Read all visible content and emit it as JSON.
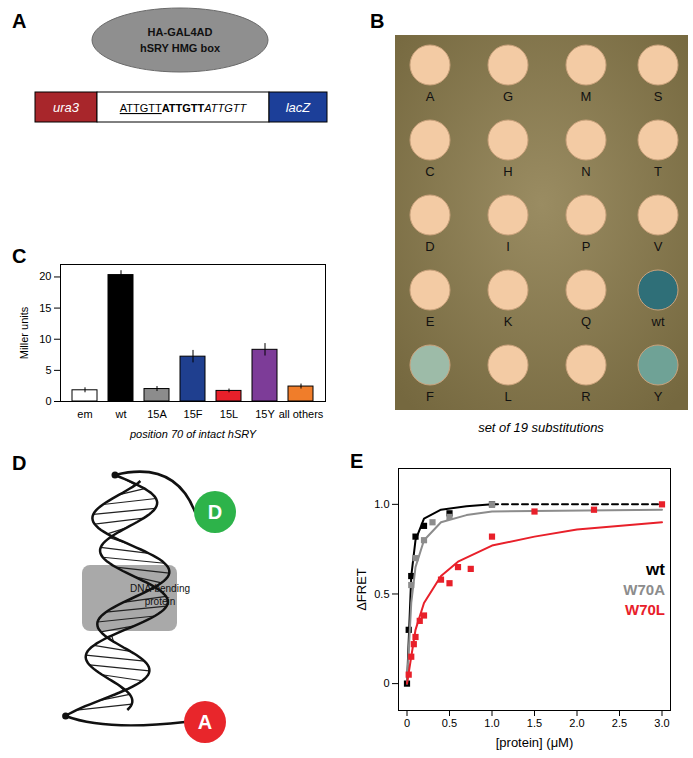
{
  "panel_labels": [
    "A",
    "B",
    "C",
    "D",
    "E"
  ],
  "panel_a": {
    "protein_label": [
      "HA-GAL4AD",
      "hSRY HMG box"
    ],
    "left_gene": {
      "label": "ura3",
      "color": "#a8262b"
    },
    "sequence": [
      {
        "text": "ATTGTT",
        "style": "underline"
      },
      {
        "text": "ATTGTT",
        "style": "bold"
      },
      {
        "text": "ATTGTT",
        "style": "italic"
      }
    ],
    "right_gene": {
      "label": "lacZ",
      "color": "#1c3f99"
    }
  },
  "panel_b": {
    "caption": "set of 19 substitutions",
    "colonies": [
      {
        "label": "A",
        "color": "#f3cba4"
      },
      {
        "label": "G",
        "color": "#f3cba4"
      },
      {
        "label": "M",
        "color": "#f3cba4"
      },
      {
        "label": "S",
        "color": "#f3cba4"
      },
      {
        "label": "C",
        "color": "#f3cba4"
      },
      {
        "label": "H",
        "color": "#f3cba4"
      },
      {
        "label": "N",
        "color": "#f3cba4"
      },
      {
        "label": "T",
        "color": "#f3cba4"
      },
      {
        "label": "D",
        "color": "#f3cba4"
      },
      {
        "label": "I",
        "color": "#f3cba4"
      },
      {
        "label": "P",
        "color": "#f3cba4"
      },
      {
        "label": "V",
        "color": "#f3cba4"
      },
      {
        "label": "E",
        "color": "#f3cba4"
      },
      {
        "label": "K",
        "color": "#f3cba4"
      },
      {
        "label": "Q",
        "color": "#f3cba4"
      },
      {
        "label": "wt",
        "color": "#2f6f78"
      },
      {
        "label": "F",
        "color": "#9dbba8"
      },
      {
        "label": "L",
        "color": "#f3cba4"
      },
      {
        "label": "R",
        "color": "#f3cba4"
      },
      {
        "label": "Y",
        "color": "#6fa296"
      }
    ]
  },
  "panel_d": {
    "donor": "D",
    "donor_color": "#2db34a",
    "acceptor": "A",
    "acceptor_color": "#e8262b",
    "protein_label": [
      "DNA-bending",
      "protein"
    ]
  },
  "chart_data": [
    {
      "type": "bar",
      "categories": [
        "em",
        "wt",
        "15A",
        "15F",
        "15L",
        "15Y",
        "all others"
      ],
      "values": [
        1.8,
        20.3,
        2.0,
        7.2,
        1.7,
        8.3,
        2.4
      ],
      "errors": [
        0.4,
        0.7,
        0.4,
        1.0,
        0.3,
        1.0,
        0.4
      ],
      "colors": [
        "#ffffff",
        "#000000",
        "#8c8c8c",
        "#1f3f8f",
        "#e8202a",
        "#7d3c98",
        "#f07d2a"
      ],
      "ylabel": "Miller units",
      "xlabel": "position 70 of intact hSRY",
      "ylim": [
        0,
        22
      ],
      "yticks": [
        0,
        5,
        10,
        15,
        20
      ]
    },
    {
      "type": "scatter",
      "xlabel": "[protein] (μM)",
      "ylabel": "ΔFRET",
      "xlim": [
        -0.1,
        3.1
      ],
      "ylim": [
        -0.15,
        1.2
      ],
      "xticks": [
        0,
        0.5,
        {
          "value": 1,
          "label": "1.0"
        },
        1.5,
        {
          "value": 2,
          "label": "2.0"
        },
        2.5,
        {
          "value": 3,
          "label": "3.0"
        }
      ],
      "yticks": [
        0,
        0.5,
        {
          "value": 1,
          "label": "1.0"
        }
      ],
      "legend": "right",
      "series": [
        {
          "name": "wt",
          "color": "#000000",
          "marker": "square",
          "x": [
            0,
            0.02,
            0.05,
            0.1,
            0.2,
            0.5,
            1.0
          ],
          "values": [
            0.0,
            0.3,
            0.6,
            0.82,
            0.88,
            0.95,
            1.0
          ],
          "fit": [
            {
              "x": [
                0,
                0.05,
                0.1,
                0.2,
                0.4,
                0.7,
                1.0
              ],
              "values": [
                0,
                0.6,
                0.8,
                0.92,
                0.97,
                0.99,
                1.0
              ],
              "line_style": "solid"
            },
            {
              "x": [
                1.0,
                3.0
              ],
              "values": [
                1.0,
                1.0
              ],
              "line_style": "dashed"
            }
          ]
        },
        {
          "name": "W70A",
          "color": "#8c8c8c",
          "marker": "square",
          "x": [
            0.05,
            0.1,
            0.2,
            0.3,
            0.5,
            1.0
          ],
          "values": [
            0.55,
            0.7,
            0.8,
            0.9,
            0.93,
            1.0
          ],
          "fit": [
            {
              "x": [
                0,
                0.05,
                0.1,
                0.2,
                0.4,
                0.7,
                1.0,
                3.0
              ],
              "values": [
                0,
                0.45,
                0.65,
                0.8,
                0.9,
                0.94,
                0.96,
                0.97
              ],
              "line_style": "solid"
            }
          ]
        },
        {
          "name": "W70L",
          "color": "#e8202a",
          "marker": "square",
          "x": [
            0.02,
            0.05,
            0.08,
            0.1,
            0.15,
            0.2,
            0.4,
            0.5,
            0.6,
            0.75,
            1.0,
            1.5,
            2.2,
            3.0
          ],
          "values": [
            0.05,
            0.15,
            0.22,
            0.26,
            0.35,
            0.38,
            0.58,
            0.56,
            0.65,
            0.64,
            0.82,
            0.96,
            0.97,
            1.0
          ],
          "fit": [
            {
              "x": [
                0,
                0.1,
                0.2,
                0.4,
                0.6,
                1.0,
                1.5,
                2.0,
                3.0
              ],
              "values": [
                0,
                0.3,
                0.45,
                0.6,
                0.68,
                0.77,
                0.82,
                0.86,
                0.9
              ],
              "line_style": "solid"
            }
          ]
        }
      ]
    }
  ]
}
